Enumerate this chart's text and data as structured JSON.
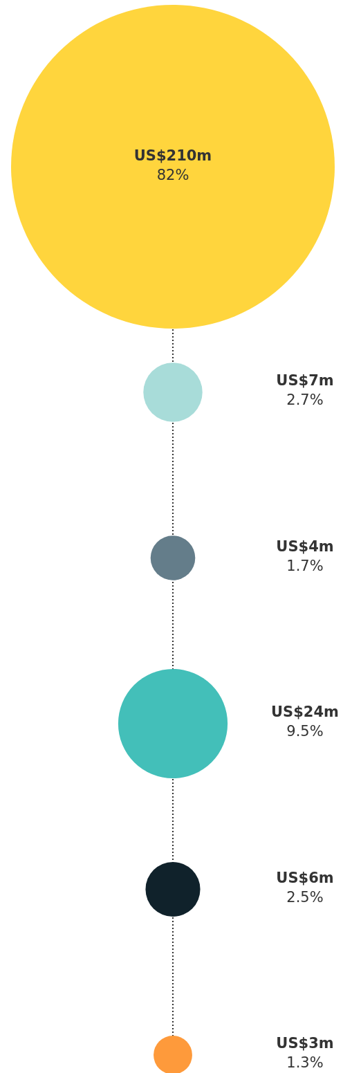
{
  "chart_data": {
    "type": "other",
    "categories": [
      null,
      null,
      null,
      null,
      null,
      null
    ],
    "colors": [
      "#ffd53d",
      "#a8dcd9",
      "#647d8a",
      "#43bfb9",
      "#10222b",
      "#fe9a3b"
    ],
    "values": [
      210,
      7,
      4,
      24,
      6,
      3
    ],
    "value_labels": [
      "US$210m",
      "US$7m",
      "US$4m",
      "US$24m",
      "US$6m",
      "US$3m"
    ],
    "annotations": [
      "82%",
      "2.7%",
      "1.7%",
      "9.5%",
      "2.5%",
      "1.3%"
    ]
  }
}
